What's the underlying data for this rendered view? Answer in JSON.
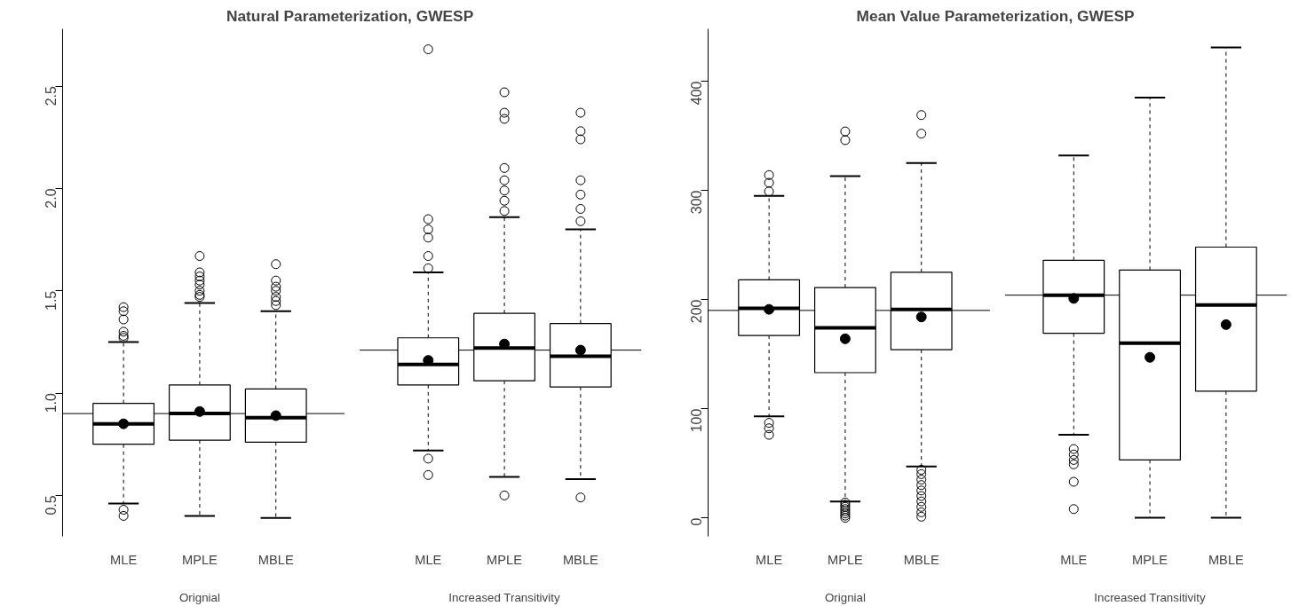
{
  "chart_data": [
    {
      "type": "box",
      "title": "Natural Parameterization,  GWESP",
      "categories": [
        "MLE",
        "MPLE",
        "MBLE",
        "MLE",
        "MPLE",
        "MBLE"
      ],
      "boxes": [
        {
          "low": 0.46,
          "q1": 0.75,
          "median": 0.85,
          "q3": 0.95,
          "high": 1.25,
          "mean": 0.85,
          "outliers": [
            0.43,
            0.4,
            1.27,
            1.28,
            1.3,
            1.36,
            1.4,
            1.42
          ]
        },
        {
          "low": 0.4,
          "q1": 0.77,
          "median": 0.9,
          "q3": 1.04,
          "high": 1.44,
          "mean": 0.91,
          "outliers": [
            1.47,
            1.48,
            1.5,
            1.53,
            1.55,
            1.57,
            1.59,
            1.67
          ]
        },
        {
          "low": 0.39,
          "q1": 0.76,
          "median": 0.88,
          "q3": 1.02,
          "high": 1.4,
          "mean": 0.89,
          "outliers": [
            1.43,
            1.45,
            1.47,
            1.5,
            1.52,
            1.55,
            1.63
          ]
        },
        {
          "low": 0.72,
          "q1": 1.04,
          "median": 1.14,
          "q3": 1.27,
          "high": 1.59,
          "mean": 1.16,
          "outliers": [
            0.68,
            0.6,
            1.61,
            1.67,
            1.76,
            1.8,
            1.85,
            2.68
          ]
        },
        {
          "low": 0.59,
          "q1": 1.06,
          "median": 1.22,
          "q3": 1.39,
          "high": 1.86,
          "mean": 1.24,
          "outliers": [
            0.5,
            1.89,
            1.94,
            1.99,
            2.04,
            2.1,
            2.34,
            2.37,
            2.47
          ]
        },
        {
          "low": 0.58,
          "q1": 1.03,
          "median": 1.18,
          "q3": 1.34,
          "high": 1.8,
          "mean": 1.21,
          "outliers": [
            0.49,
            1.84,
            1.9,
            1.97,
            2.04,
            2.24,
            2.28,
            2.37
          ]
        }
      ],
      "ylim": [
        0.3,
        2.78
      ],
      "yticks": [
        0.5,
        {
          "value": 1,
          "label": "1.0"
        },
        1.5,
        {
          "value": 2,
          "label": "2.0"
        },
        2.5
      ],
      "ref_lines": [
        {
          "axis": "y",
          "value": 0.9
        },
        {
          "axis": "y",
          "value": 1.21
        }
      ],
      "annotations": [
        "Orignial",
        "Increased Transitivity"
      ]
    },
    {
      "type": "box",
      "title": "Mean Value Parameterization,  GWESP",
      "categories": [
        "MLE",
        "MPLE",
        "MBLE",
        "MLE",
        "MPLE",
        "MBLE"
      ],
      "boxes": [
        {
          "low": 93,
          "q1": 167,
          "median": 192,
          "q3": 218,
          "high": 295,
          "mean": 191,
          "outliers": [
            76,
            82,
            87,
            299,
            307,
            314
          ]
        },
        {
          "low": 15,
          "q1": 133,
          "median": 174,
          "q3": 211,
          "high": 313,
          "mean": 164,
          "outliers": [
            0,
            2,
            4,
            6,
            8,
            10,
            12,
            14,
            346,
            354
          ]
        },
        {
          "low": 47,
          "q1": 154,
          "median": 191,
          "q3": 225,
          "high": 325,
          "mean": 184,
          "outliers": [
            1,
            5,
            10,
            15,
            20,
            25,
            30,
            35,
            40,
            44,
            352,
            369
          ]
        },
        {
          "low": 76,
          "q1": 169,
          "median": 204,
          "q3": 236,
          "high": 332,
          "mean": 201,
          "outliers": [
            8,
            33,
            49,
            53,
            58,
            63
          ]
        },
        {
          "low": 0,
          "q1": 53,
          "median": 160,
          "q3": 227,
          "high": 385,
          "mean": 147
        },
        {
          "low": 0,
          "q1": 116,
          "median": 195,
          "q3": 248,
          "high": 431,
          "mean": 177
        }
      ],
      "ylim": [
        -17,
        448
      ],
      "yticks": [
        0,
        100,
        200,
        300,
        400
      ],
      "ref_lines": [
        {
          "axis": "y",
          "value": 190
        },
        {
          "axis": "y",
          "value": 204
        }
      ],
      "annotations": [
        "Orignial",
        "Increased Transitivity"
      ]
    }
  ]
}
